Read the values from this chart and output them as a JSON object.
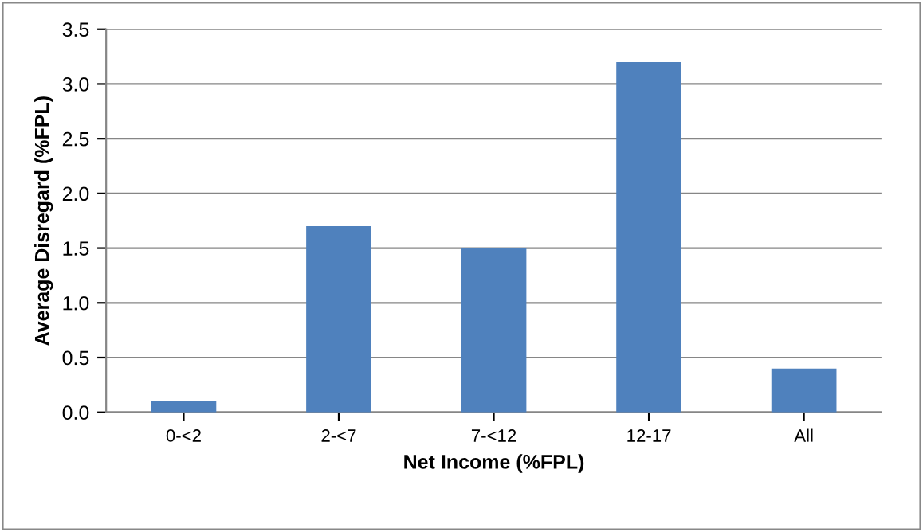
{
  "chart_data": {
    "type": "bar",
    "xlabel": "Net Income (%FPL)",
    "ylabel": "Average Disregard (%FPL)",
    "categories": [
      "0-<2",
      "2-<7",
      "7-<12",
      "12-17",
      "All"
    ],
    "values": [
      0.1,
      1.7,
      1.5,
      3.2,
      0.4
    ],
    "color": "#4f81bd",
    "ylim": [
      0,
      3.5
    ],
    "yticks": [
      {
        "value": 0,
        "label": "0.0"
      },
      {
        "value": 0.5,
        "label": "0.5"
      },
      {
        "value": 1,
        "label": "1.0"
      },
      {
        "value": 1.5,
        "label": "1.5"
      },
      {
        "value": 2,
        "label": "2.0"
      },
      {
        "value": 2.5,
        "label": "2.5"
      },
      {
        "value": 3,
        "label": "3.0"
      },
      {
        "value": 3.5,
        "label": "3.5"
      }
    ],
    "grid": "y"
  }
}
